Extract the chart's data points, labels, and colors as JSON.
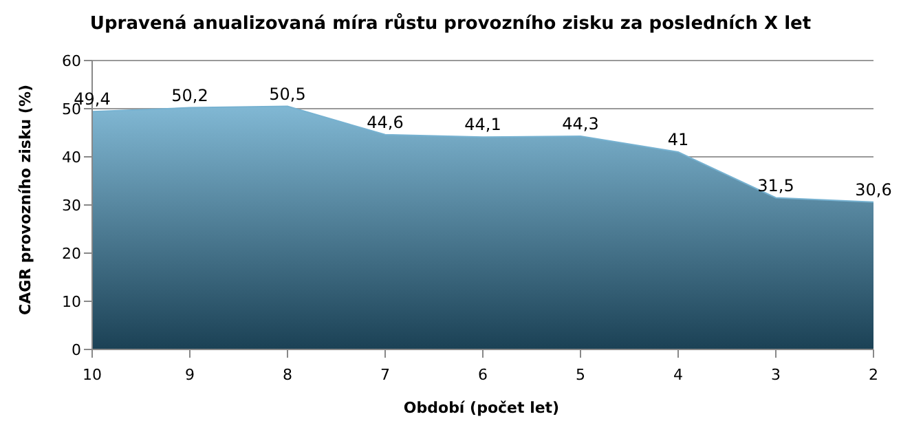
{
  "chart_data": {
    "type": "area",
    "title": "Upravená anualizovaná míra růstu provozního zisku za posledních X let",
    "xlabel": "Období (počet let)",
    "ylabel": "CAGR provozního  zisku (%)",
    "categories": [
      "10",
      "9",
      "8",
      "7",
      "6",
      "5",
      "4",
      "3",
      "2"
    ],
    "series": [
      {
        "color": "#3d91bd",
        "values": [
          49.4,
          50.2,
          50.5,
          44.6,
          44.1,
          44.3,
          41,
          31.5,
          30.6
        ],
        "value_labels": [
          "49,4",
          "50,2",
          "50,5",
          "44,6",
          "44,1",
          "44,3",
          "41",
          "31,5",
          "30,6"
        ]
      }
    ],
    "ylim": [
      0,
      60
    ],
    "yticks": [
      0,
      10,
      20,
      30,
      40,
      50,
      60
    ],
    "grid": "y",
    "legend": false
  }
}
